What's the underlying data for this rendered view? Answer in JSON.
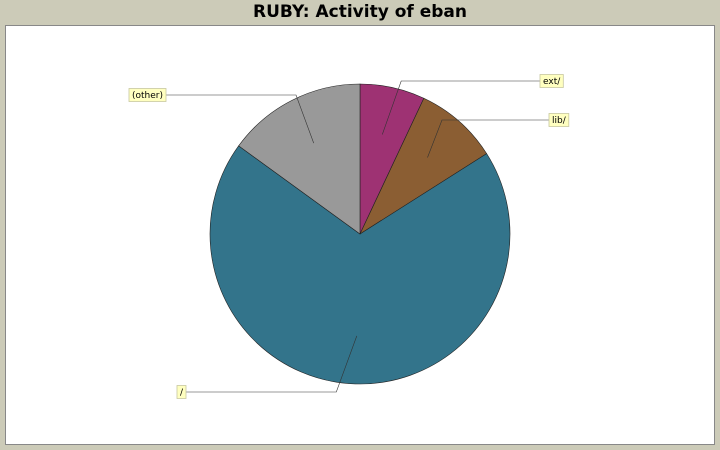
{
  "chart_data": {
    "type": "pie",
    "title": "RUBY: Activity of eban",
    "slices": [
      {
        "label": "ext/",
        "value": 7,
        "color": "#9e3273"
      },
      {
        "label": "lib/",
        "value": 9,
        "color": "#8b5e33"
      },
      {
        "label": "/",
        "value": 69,
        "color": "#33748b"
      },
      {
        "label": "(other)",
        "value": 15,
        "color": "#999999"
      }
    ],
    "legend": "none"
  }
}
